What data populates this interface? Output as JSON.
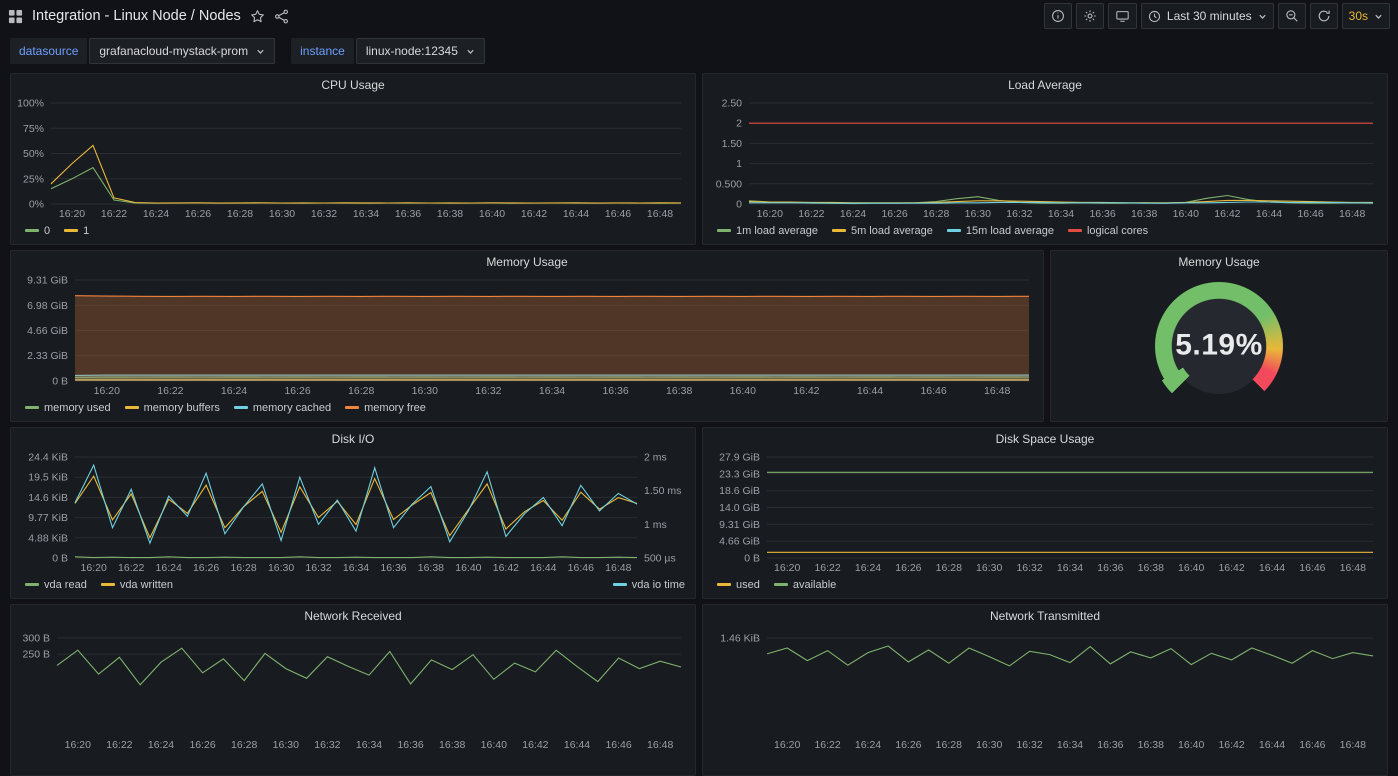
{
  "header": {
    "title": "Integration - Linux Node / Nodes",
    "time_range_label": "Last 30 minutes",
    "refresh_interval": "30s"
  },
  "variables": [
    {
      "label": "datasource",
      "value": "grafanacloud-mystack-prom"
    },
    {
      "label": "instance",
      "value": "linux-node:12345"
    }
  ],
  "colors": {
    "green": "#7EB26D",
    "yellow": "#EAB839",
    "blue": "#6ED0E0",
    "orange": "#EF843C",
    "red": "#E24D42",
    "variable_label": "#6e9fff",
    "refresh_text": "#EAB839",
    "panel_bg": "#181b1f"
  },
  "time_axis": {
    "labels": [
      "16:20",
      "16:22",
      "16:24",
      "16:26",
      "16:28",
      "16:30",
      "16:32",
      "16:34",
      "16:36",
      "16:38",
      "16:40",
      "16:42",
      "16:44",
      "16:46",
      "16:48"
    ],
    "positions": [
      1,
      3,
      5,
      7,
      9,
      11,
      13,
      15,
      17,
      19,
      21,
      23,
      25,
      27,
      29
    ]
  },
  "chart_data": [
    {
      "panel": "cpu",
      "type": "line",
      "title": "CPU Usage",
      "x_domain": [
        0,
        30
      ],
      "y_min": 0,
      "y_max": 100,
      "y_ticks": [
        {
          "v": 0,
          "label": "0%"
        },
        {
          "v": 25,
          "label": "25%"
        },
        {
          "v": 50,
          "label": "50%"
        },
        {
          "v": 75,
          "label": "75%"
        },
        {
          "v": 100,
          "label": "100%"
        }
      ],
      "series": [
        {
          "name": "0",
          "color": "#7EB26D",
          "values": [
            15,
            25,
            36,
            4,
            1,
            0.8,
            0.9,
            1,
            0.8,
            0.9,
            1,
            0.9,
            0.8,
            1,
            0.9,
            0.8,
            1,
            0.9,
            1,
            0.8,
            0.9,
            1,
            0.8,
            0.9,
            1,
            0.9,
            0.8,
            1,
            0.9,
            0.8,
            0.9
          ]
        },
        {
          "name": "1",
          "color": "#EAB839",
          "values": [
            20,
            40,
            58,
            6,
            1.5,
            1,
            1.1,
            1.2,
            1,
            1.1,
            1.2,
            1,
            1.1,
            1,
            1.2,
            1.1,
            1,
            1.2,
            1,
            1.1,
            1,
            1.2,
            1.1,
            1,
            1.1,
            1.2,
            1,
            1.1,
            1,
            1.2,
            1.1
          ]
        }
      ]
    },
    {
      "panel": "load",
      "type": "line",
      "title": "Load Average",
      "x_domain": [
        0,
        30
      ],
      "y_min": 0,
      "y_max": 2.5,
      "y_ticks": [
        {
          "v": 0,
          "label": "0"
        },
        {
          "v": 0.5,
          "label": "0.500"
        },
        {
          "v": 1,
          "label": "1"
        },
        {
          "v": 1.5,
          "label": "1.50"
        },
        {
          "v": 2,
          "label": "2"
        },
        {
          "v": 2.5,
          "label": "2.50"
        }
      ],
      "series": [
        {
          "name": "1m load average",
          "color": "#7EB26D",
          "values": [
            0.08,
            0.05,
            0.04,
            0.02,
            0.02,
            0.01,
            0.02,
            0.02,
            0.03,
            0.06,
            0.13,
            0.18,
            0.09,
            0.04,
            0.02,
            0.02,
            0.03,
            0.02,
            0.02,
            0.03,
            0.02,
            0.04,
            0.14,
            0.21,
            0.11,
            0.05,
            0.03,
            0.02,
            0.02,
            0.03,
            0.02
          ]
        },
        {
          "name": "5m load average",
          "color": "#EAB839",
          "values": [
            0.06,
            0.05,
            0.05,
            0.04,
            0.04,
            0.03,
            0.03,
            0.03,
            0.03,
            0.04,
            0.06,
            0.08,
            0.08,
            0.07,
            0.06,
            0.05,
            0.04,
            0.04,
            0.03,
            0.03,
            0.03,
            0.04,
            0.06,
            0.09,
            0.09,
            0.08,
            0.07,
            0.06,
            0.05,
            0.04,
            0.04
          ]
        },
        {
          "name": "15m load average",
          "color": "#6ED0E0",
          "values": [
            0.03,
            0.03,
            0.03,
            0.03,
            0.02,
            0.02,
            0.02,
            0.02,
            0.02,
            0.02,
            0.03,
            0.03,
            0.04,
            0.04,
            0.04,
            0.03,
            0.03,
            0.03,
            0.03,
            0.02,
            0.02,
            0.03,
            0.03,
            0.04,
            0.05,
            0.05,
            0.04,
            0.04,
            0.04,
            0.03,
            0.03
          ]
        },
        {
          "name": "logical cores",
          "color": "#E24D42",
          "values": [
            2,
            2,
            2,
            2,
            2,
            2,
            2,
            2,
            2,
            2,
            2,
            2,
            2,
            2,
            2,
            2,
            2,
            2,
            2,
            2,
            2,
            2,
            2,
            2,
            2,
            2,
            2,
            2,
            2,
            2,
            2
          ]
        }
      ]
    },
    {
      "panel": "memory",
      "type": "line",
      "title": "Memory Usage",
      "x_domain": [
        0,
        30
      ],
      "y_min": 0,
      "y_max": 9.31,
      "y_ticks": [
        {
          "v": 0,
          "label": "0 B"
        },
        {
          "v": 2.33,
          "label": "2.33 GiB"
        },
        {
          "v": 4.66,
          "label": "4.66 GiB"
        },
        {
          "v": 6.98,
          "label": "6.98 GiB"
        },
        {
          "v": 9.31,
          "label": "9.31 GiB"
        }
      ],
      "series": [
        {
          "name": "memory used",
          "color": "#7EB26D",
          "fill_opacity": 0.22,
          "values": [
            0.34,
            0.36,
            0.37,
            0.38,
            0.37,
            0.38,
            0.37,
            0.38,
            0.37,
            0.38,
            0.37,
            0.38,
            0.37,
            0.38,
            0.37,
            0.38,
            0.37,
            0.38,
            0.37,
            0.38,
            0.37,
            0.38,
            0.37,
            0.38,
            0.37,
            0.38,
            0.37,
            0.38,
            0.37,
            0.38,
            0.37
          ]
        },
        {
          "name": "memory buffers",
          "color": "#EAB839",
          "fill_opacity": 0.22,
          "values": [
            0.11,
            0.11,
            0.11,
            0.11,
            0.11,
            0.11,
            0.11,
            0.11,
            0.11,
            0.11,
            0.11,
            0.11,
            0.11,
            0.11,
            0.11,
            0.11,
            0.11,
            0.11,
            0.11,
            0.11,
            0.11,
            0.11,
            0.11,
            0.11,
            0.11,
            0.11,
            0.11,
            0.11,
            0.11,
            0.11,
            0.11
          ]
        },
        {
          "name": "memory cached",
          "color": "#6ED0E0",
          "fill_opacity": 0.22,
          "values": [
            0.52,
            0.54,
            0.54,
            0.54,
            0.54,
            0.54,
            0.54,
            0.54,
            0.54,
            0.54,
            0.54,
            0.54,
            0.54,
            0.54,
            0.54,
            0.54,
            0.54,
            0.54,
            0.54,
            0.54,
            0.54,
            0.54,
            0.54,
            0.54,
            0.54,
            0.54,
            0.54,
            0.54,
            0.54,
            0.54,
            0.54
          ]
        },
        {
          "name": "memory free",
          "color": "#EF843C",
          "fill_opacity": 0.26,
          "values": [
            7.86,
            7.83,
            7.81,
            7.8,
            7.81,
            7.8,
            7.81,
            7.8,
            7.81,
            7.8,
            7.81,
            7.8,
            7.81,
            7.8,
            7.81,
            7.8,
            7.81,
            7.8,
            7.81,
            7.8,
            7.81,
            7.8,
            7.81,
            7.8,
            7.81,
            7.8,
            7.81,
            7.8,
            7.81,
            7.8,
            7.81
          ]
        }
      ]
    },
    {
      "panel": "memory-gauge",
      "type": "gauge",
      "title": "Memory Usage",
      "value": 5.19,
      "value_label": "5.19%",
      "min": 0,
      "max": 100,
      "arc_colors": [
        "#73BF69",
        "#EAB839",
        "#F2495C"
      ]
    },
    {
      "panel": "disk-io",
      "type": "line",
      "title": "Disk I/O",
      "x_domain": [
        0,
        30
      ],
      "y_min": 0,
      "y_max": 24.41,
      "y_ticks": [
        {
          "v": 0,
          "label": "0 B"
        },
        {
          "v": 4.88,
          "label": "4.88 KiB"
        },
        {
          "v": 9.77,
          "label": "9.77 KiB"
        },
        {
          "v": 14.65,
          "label": "14.6 KiB"
        },
        {
          "v": 19.53,
          "label": "19.5 KiB"
        },
        {
          "v": 24.41,
          "label": "24.4 KiB"
        }
      ],
      "y2_min": 0.5,
      "y2_max": 2,
      "y2_ticks": [
        {
          "v": 0.5,
          "label": "500 µs"
        },
        {
          "v": 1,
          "label": "1 ms"
        },
        {
          "v": 1.5,
          "label": "1.50 ms"
        },
        {
          "v": 2,
          "label": "2 ms"
        }
      ],
      "series": [
        {
          "name": "vda read",
          "color": "#7EB26D",
          "values": [
            0.3,
            0.1,
            0.2,
            0.1,
            0.1,
            0.3,
            0.1,
            0.1,
            0.2,
            0.1,
            0.1,
            0.1,
            0.3,
            0.1,
            0.1,
            0.2,
            0.1,
            0.1,
            0.1,
            0.3,
            0.1,
            0.1,
            0.2,
            0.1,
            0.1,
            0.1,
            0.3,
            0.1,
            0.1,
            0.2,
            0.1
          ]
        },
        {
          "name": "vda written",
          "color": "#EAB839",
          "values": [
            13.2,
            19.8,
            9.2,
            15.5,
            4.9,
            14.2,
            10.8,
            17.6,
            7.3,
            12.4,
            16.1,
            6.2,
            17.2,
            9.8,
            13.7,
            8.1,
            19.2,
            9.3,
            12.8,
            15.8,
            5.4,
            11.7,
            17.9,
            7.0,
            11.2,
            13.9,
            9.1,
            15.9,
            11.8,
            14.6,
            13.2
          ]
        },
        {
          "name": "vda io time",
          "color": "#6ED0E0",
          "axis": "right",
          "values": [
            1.32,
            1.88,
            0.95,
            1.52,
            0.72,
            1.42,
            1.12,
            1.76,
            0.86,
            1.26,
            1.6,
            0.76,
            1.7,
            1.0,
            1.36,
            0.9,
            1.84,
            0.95,
            1.3,
            1.56,
            0.74,
            1.2,
            1.78,
            0.82,
            1.16,
            1.4,
            0.98,
            1.58,
            1.2,
            1.46,
            1.3
          ]
        }
      ]
    },
    {
      "panel": "disk-space",
      "type": "line",
      "title": "Disk Space Usage",
      "x_domain": [
        0,
        30
      ],
      "y_min": 0,
      "y_max": 27.94,
      "y_ticks": [
        {
          "v": 0,
          "label": "0 B"
        },
        {
          "v": 4.66,
          "label": "4.66 GiB"
        },
        {
          "v": 9.31,
          "label": "9.31 GiB"
        },
        {
          "v": 13.97,
          "label": "14.0 GiB"
        },
        {
          "v": 18.63,
          "label": "18.6 GiB"
        },
        {
          "v": 23.28,
          "label": "23.3 GiB"
        },
        {
          "v": 27.94,
          "label": "27.9 GiB"
        }
      ],
      "series": [
        {
          "name": "used",
          "color": "#EAB839",
          "values": [
            1.57,
            1.57,
            1.57,
            1.57,
            1.57,
            1.57,
            1.57,
            1.57,
            1.57,
            1.57,
            1.57,
            1.57,
            1.57,
            1.57,
            1.57,
            1.57,
            1.57,
            1.57,
            1.57,
            1.57,
            1.57,
            1.57,
            1.57,
            1.57,
            1.57,
            1.57,
            1.57,
            1.57,
            1.57,
            1.57,
            1.57
          ]
        },
        {
          "name": "available",
          "color": "#7EB26D",
          "values": [
            23.7,
            23.7,
            23.7,
            23.7,
            23.7,
            23.7,
            23.7,
            23.7,
            23.7,
            23.7,
            23.7,
            23.7,
            23.7,
            23.7,
            23.7,
            23.7,
            23.7,
            23.7,
            23.7,
            23.7,
            23.7,
            23.7,
            23.7,
            23.7,
            23.7,
            23.7,
            23.7,
            23.7,
            23.7,
            23.7,
            23.7
          ]
        }
      ]
    },
    {
      "panel": "net-recv",
      "type": "line",
      "title": "Network Received",
      "x_domain": [
        0,
        30
      ],
      "y_min": 0,
      "y_max": 312,
      "y_ticks": [
        {
          "v": 300,
          "label": "300 B"
        },
        {
          "v": 250,
          "label": "250 B"
        }
      ],
      "series": [
        {
          "name": "",
          "color": "#7EB26D",
          "values": [
            215,
            262,
            188,
            240,
            155,
            225,
            268,
            192,
            235,
            168,
            252,
            205,
            175,
            242,
            212,
            185,
            258,
            158,
            232,
            202,
            248,
            172,
            222,
            195,
            262,
            212,
            165,
            238,
            205,
            228,
            210
          ]
        }
      ]
    },
    {
      "panel": "net-trans",
      "type": "line",
      "title": "Network Transmitted",
      "x_domain": [
        0,
        30
      ],
      "y_min": 0,
      "y_max": 1.52,
      "y_ticks": [
        {
          "v": 1.46,
          "label": "1.46 KiB"
        }
      ],
      "series": [
        {
          "name": "",
          "color": "#7EB26D",
          "values": [
            1.22,
            1.31,
            1.12,
            1.27,
            1.05,
            1.24,
            1.34,
            1.1,
            1.28,
            1.08,
            1.31,
            1.18,
            1.04,
            1.26,
            1.21,
            1.09,
            1.33,
            1.07,
            1.25,
            1.16,
            1.3,
            1.06,
            1.23,
            1.13,
            1.31,
            1.2,
            1.08,
            1.27,
            1.15,
            1.24,
            1.19
          ]
        }
      ]
    }
  ]
}
